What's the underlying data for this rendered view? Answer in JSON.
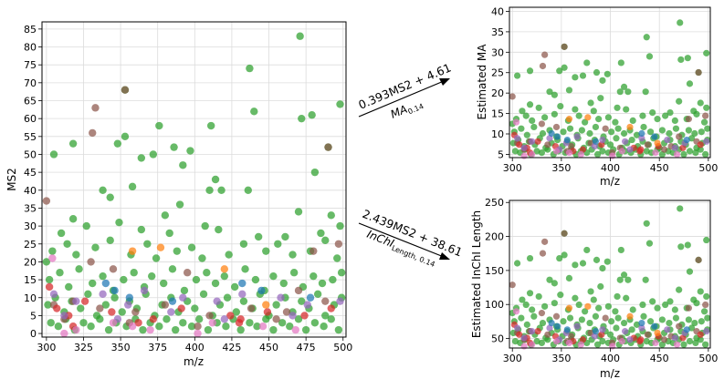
{
  "chart_data": [
    {
      "id": "main",
      "type": "scatter",
      "title": "",
      "xlabel": "m/z",
      "ylabel": "MS2",
      "xlim": [
        297,
        502
      ],
      "ylim": [
        -1,
        87
      ],
      "xticks": [
        300,
        325,
        350,
        375,
        400,
        425,
        450,
        475,
        500
      ],
      "yticks": [
        0,
        5,
        10,
        15,
        20,
        25,
        30,
        35,
        40,
        45,
        50,
        55,
        60,
        65,
        70,
        75,
        80,
        85
      ],
      "grid": true,
      "series": [
        {
          "name": "green",
          "color": "#2ca02c",
          "points": [
            [
              471,
              83
            ],
            [
              437,
              74
            ],
            [
              353,
              68
            ],
            [
              498,
              64
            ],
            [
              440,
              62
            ],
            [
              472,
              60
            ],
            [
              479,
              61
            ],
            [
              305,
              50
            ],
            [
              348,
              53
            ],
            [
              318,
              53
            ],
            [
              353,
              55
            ],
            [
              376,
              58
            ],
            [
              411,
              58
            ],
            [
              490,
              52
            ],
            [
              364,
              49
            ],
            [
              372,
              50
            ],
            [
              386,
              52
            ],
            [
              392,
              47
            ],
            [
              397,
              51
            ],
            [
              338,
              40
            ],
            [
              358,
              41
            ],
            [
              414,
              43
            ],
            [
              418,
              40
            ],
            [
              436,
              40
            ],
            [
              410,
              40
            ],
            [
              481,
              45
            ],
            [
              343,
              38
            ],
            [
              390,
              36
            ],
            [
              380,
              33
            ],
            [
              407,
              30
            ],
            [
              470,
              34
            ],
            [
              492,
              33
            ],
            [
              498,
              30
            ],
            [
              310,
              28
            ],
            [
              318,
              32
            ],
            [
              327,
              30
            ],
            [
              349,
              31
            ],
            [
              364,
              29
            ],
            [
              383,
              28
            ],
            [
              416,
              29
            ],
            [
              443,
              27
            ],
            [
              461,
              27
            ],
            [
              485,
              28
            ],
            [
              300,
              20
            ],
            [
              304,
              23
            ],
            [
              314,
              25
            ],
            [
              320,
              22
            ],
            [
              333,
              24
            ],
            [
              343,
              26
            ],
            [
              357,
              22
            ],
            [
              368,
              25
            ],
            [
              374,
              21
            ],
            [
              388,
              23
            ],
            [
              398,
              24
            ],
            [
              405,
              21
            ],
            [
              423,
              22
            ],
            [
              433,
              25
            ],
            [
              448,
              23
            ],
            [
              456,
              25
            ],
            [
              466,
              22
            ],
            [
              478,
              23
            ],
            [
              488,
              26
            ],
            [
              496,
              21
            ],
            [
              302,
              15
            ],
            [
              309,
              17
            ],
            [
              315,
              13
            ],
            [
              322,
              18
            ],
            [
              331,
              14
            ],
            [
              338,
              16
            ],
            [
              345,
              12
            ],
            [
              352,
              15
            ],
            [
              359,
              17
            ],
            [
              366,
              13
            ],
            [
              371,
              16
            ],
            [
              379,
              14
            ],
            [
              385,
              18
            ],
            [
              393,
              12
            ],
            [
              401,
              15
            ],
            [
              408,
              17
            ],
            [
              414,
              14
            ],
            [
              420,
              16
            ],
            [
              427,
              13
            ],
            [
              434,
              18
            ],
            [
              441,
              15
            ],
            [
              447,
              12
            ],
            [
              453,
              16
            ],
            [
              460,
              14
            ],
            [
              467,
              17
            ],
            [
              473,
              13
            ],
            [
              480,
              16
            ],
            [
              486,
              14
            ],
            [
              493,
              15
            ],
            [
              499,
              17
            ],
            [
              301,
              8
            ],
            [
              306,
              10
            ],
            [
              312,
              6
            ],
            [
              317,
              9
            ],
            [
              323,
              7
            ],
            [
              328,
              11
            ],
            [
              334,
              5
            ],
            [
              340,
              8
            ],
            [
              346,
              10
            ],
            [
              351,
              6
            ],
            [
              356,
              9
            ],
            [
              361,
              7
            ],
            [
              367,
              11
            ],
            [
              373,
              5
            ],
            [
              378,
              8
            ],
            [
              384,
              10
            ],
            [
              389,
              6
            ],
            [
              395,
              9
            ],
            [
              400,
              7
            ],
            [
              406,
              11
            ],
            [
              412,
              5
            ],
            [
              417,
              8
            ],
            [
              422,
              10
            ],
            [
              428,
              6
            ],
            [
              433,
              9
            ],
            [
              439,
              7
            ],
            [
              444,
              11
            ],
            [
              450,
              5
            ],
            [
              455,
              8
            ],
            [
              461,
              10
            ],
            [
              466,
              6
            ],
            [
              472,
              9
            ],
            [
              477,
              7
            ],
            [
              483,
              11
            ],
            [
              488,
              5
            ],
            [
              494,
              8
            ],
            [
              499,
              10
            ],
            [
              303,
              3
            ],
            [
              308,
              2
            ],
            [
              313,
              4
            ],
            [
              319,
              1
            ],
            [
              325,
              3
            ],
            [
              330,
              2
            ],
            [
              336,
              4
            ],
            [
              342,
              1
            ],
            [
              347,
              3
            ],
            [
              354,
              2
            ],
            [
              360,
              4
            ],
            [
              365,
              1
            ],
            [
              370,
              3
            ],
            [
              376,
              2
            ],
            [
              381,
              4
            ],
            [
              387,
              1
            ],
            [
              392,
              3
            ],
            [
              398,
              2
            ],
            [
              403,
              4
            ],
            [
              409,
              1
            ],
            [
              415,
              3
            ],
            [
              421,
              2
            ],
            [
              426,
              4
            ],
            [
              431,
              1
            ],
            [
              437,
              3
            ],
            [
              442,
              2
            ],
            [
              448,
              4
            ],
            [
              453,
              1
            ],
            [
              459,
              3
            ],
            [
              464,
              2
            ],
            [
              470,
              4
            ],
            [
              475,
              1
            ],
            [
              481,
              3
            ],
            [
              487,
              2
            ],
            [
              492,
              4
            ],
            [
              497,
              1
            ]
          ]
        },
        {
          "name": "brown",
          "color": "#8c564b",
          "points": [
            [
              353,
              68
            ],
            [
              333,
              63
            ],
            [
              331,
              56
            ],
            [
              300,
              37
            ],
            [
              490,
              52
            ],
            [
              497,
              25
            ],
            [
              480,
              23
            ],
            [
              330,
              20
            ],
            [
              345,
              18
            ],
            [
              395,
              17
            ],
            [
              470,
              12
            ],
            [
              305,
              8
            ],
            [
              318,
              9
            ],
            [
              336,
              7
            ],
            [
              360,
              6
            ],
            [
              380,
              8
            ],
            [
              410,
              5
            ],
            [
              438,
              7
            ],
            [
              462,
              6
            ],
            [
              488,
              9
            ],
            [
              312,
              4
            ],
            [
              356,
              3
            ],
            [
              402,
              2
            ],
            [
              455,
              4
            ]
          ]
        },
        {
          "name": "red",
          "color": "#d62728",
          "points": [
            [
              302,
              13
            ],
            [
              307,
              7
            ],
            [
              315,
              5
            ],
            [
              326,
              9
            ],
            [
              344,
              6
            ],
            [
              372,
              4
            ],
            [
              391,
              7
            ],
            [
              424,
              5
            ],
            [
              430,
              3
            ],
            [
              431,
              4
            ],
            [
              449,
              6
            ],
            [
              474,
              5
            ],
            [
              492,
              7
            ],
            [
              318,
              2
            ],
            [
              362,
              3
            ]
          ]
        },
        {
          "name": "purple",
          "color": "#9467bd",
          "points": [
            [
              305,
              11
            ],
            [
              320,
              9
            ],
            [
              338,
              11
            ],
            [
              355,
              8
            ],
            [
              366,
              12
            ],
            [
              392,
              10
            ],
            [
              415,
              9
            ],
            [
              432,
              11
            ],
            [
              458,
              10
            ],
            [
              476,
              8
            ],
            [
              498,
              9
            ],
            [
              312,
              5
            ],
            [
              348,
              4
            ],
            [
              384,
              6
            ],
            [
              420,
              4
            ],
            [
              466,
              5
            ]
          ]
        },
        {
          "name": "pink",
          "color": "#e377c2",
          "points": [
            [
              304,
              21
            ],
            [
              312,
              0
            ],
            [
              320,
              1
            ],
            [
              345,
              3
            ],
            [
              358,
              2
            ],
            [
              370,
              1
            ],
            [
              402,
              0
            ],
            [
              412,
              3
            ],
            [
              446,
              2
            ],
            [
              468,
              1
            ]
          ]
        },
        {
          "name": "blue",
          "color": "#1f77b4",
          "points": [
            [
              340,
              14
            ],
            [
              346,
              12
            ],
            [
              356,
              10
            ],
            [
              385,
              9
            ],
            [
              432,
              14
            ],
            [
              445,
              12
            ],
            [
              478,
              10
            ]
          ]
        },
        {
          "name": "orange",
          "color": "#ff7f0e",
          "points": [
            [
              377,
              24
            ],
            [
              358,
              23
            ],
            [
              420,
              18
            ],
            [
              448,
              8
            ]
          ]
        }
      ]
    },
    {
      "id": "ma",
      "type": "scatter",
      "title": "",
      "xlabel": "m/z",
      "ylabel": "Estimated MA",
      "xlim": [
        297,
        502
      ],
      "ylim": [
        4.2,
        41
      ],
      "xticks": [
        300,
        350,
        400,
        450,
        500
      ],
      "yticks": [
        5,
        10,
        15,
        20,
        25,
        30,
        35,
        40
      ],
      "grid": true,
      "transform": {
        "slope": 0.393,
        "intercept": 4.61
      }
    },
    {
      "id": "inchi",
      "type": "scatter",
      "title": "",
      "xlabel": "m/z",
      "ylabel": "Estimated InChI Length",
      "xlim": [
        297,
        502
      ],
      "ylim": [
        36,
        253
      ],
      "xticks": [
        300,
        350,
        400,
        450,
        500
      ],
      "yticks": [
        50,
        100,
        150,
        200,
        250
      ],
      "grid": true,
      "transform": {
        "slope": 2.439,
        "intercept": 38.61
      }
    }
  ],
  "arrows": {
    "top": {
      "equation": "0.393MS2 + 4.61",
      "model_main": "MA",
      "model_sub": "0.14"
    },
    "bottom": {
      "equation": "2.439MS2 + 38.61",
      "model_main": "InChI",
      "model_sub": "Length, 0.14"
    }
  }
}
